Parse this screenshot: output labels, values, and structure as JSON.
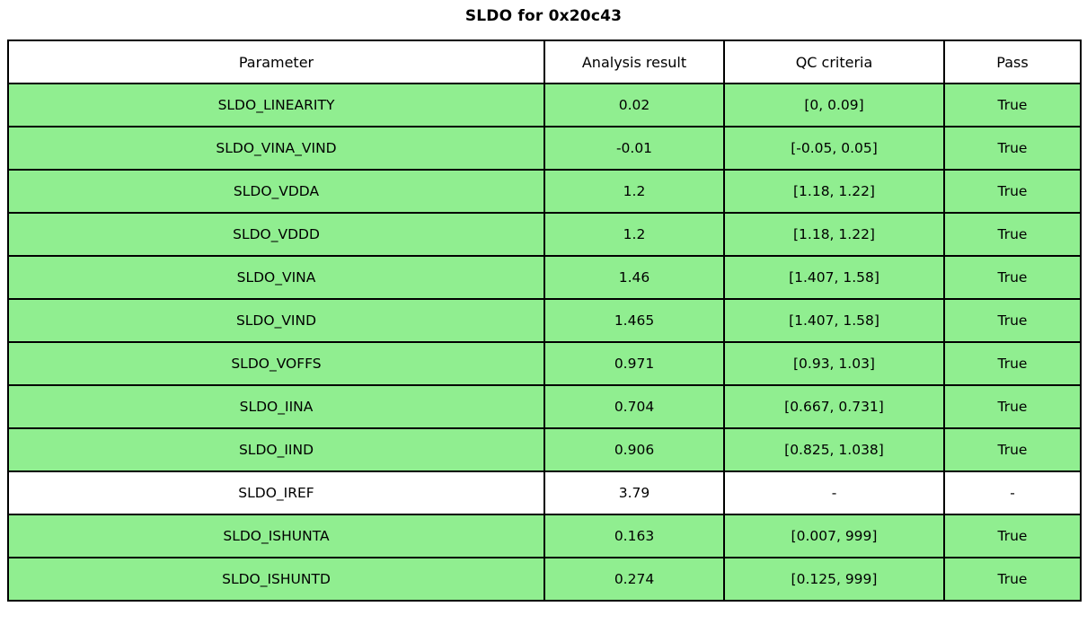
{
  "title": "SLDO for 0x20c43",
  "colors": {
    "pass_row_background": "#90ee90",
    "neutral_row_background": "#ffffff",
    "border": "#000000",
    "text": "#000000"
  },
  "table": {
    "headers": [
      "Parameter",
      "Analysis result",
      "QC criteria",
      "Pass"
    ],
    "rows": [
      {
        "parameter": "SLDO_LINEARITY",
        "analysis_result": "0.02",
        "qc_criteria": "[0, 0.09]",
        "pass": "True",
        "highlighted": true
      },
      {
        "parameter": "SLDO_VINA_VIND",
        "analysis_result": "-0.01",
        "qc_criteria": "[-0.05, 0.05]",
        "pass": "True",
        "highlighted": true
      },
      {
        "parameter": "SLDO_VDDA",
        "analysis_result": "1.2",
        "qc_criteria": "[1.18, 1.22]",
        "pass": "True",
        "highlighted": true
      },
      {
        "parameter": "SLDO_VDDD",
        "analysis_result": "1.2",
        "qc_criteria": "[1.18, 1.22]",
        "pass": "True",
        "highlighted": true
      },
      {
        "parameter": "SLDO_VINA",
        "analysis_result": "1.46",
        "qc_criteria": "[1.407, 1.58]",
        "pass": "True",
        "highlighted": true
      },
      {
        "parameter": "SLDO_VIND",
        "analysis_result": "1.465",
        "qc_criteria": "[1.407, 1.58]",
        "pass": "True",
        "highlighted": true
      },
      {
        "parameter": "SLDO_VOFFS",
        "analysis_result": "0.971",
        "qc_criteria": "[0.93, 1.03]",
        "pass": "True",
        "highlighted": true
      },
      {
        "parameter": "SLDO_IINA",
        "analysis_result": "0.704",
        "qc_criteria": "[0.667, 0.731]",
        "pass": "True",
        "highlighted": true
      },
      {
        "parameter": "SLDO_IIND",
        "analysis_result": "0.906",
        "qc_criteria": "[0.825, 1.038]",
        "pass": "True",
        "highlighted": true
      },
      {
        "parameter": "SLDO_IREF",
        "analysis_result": "3.79",
        "qc_criteria": "-",
        "pass": "-",
        "highlighted": false
      },
      {
        "parameter": "SLDO_ISHUNTA",
        "analysis_result": "0.163",
        "qc_criteria": "[0.007, 999]",
        "pass": "True",
        "highlighted": true
      },
      {
        "parameter": "SLDO_ISHUNTD",
        "analysis_result": "0.274",
        "qc_criteria": "[0.125, 999]",
        "pass": "True",
        "highlighted": true
      }
    ]
  }
}
